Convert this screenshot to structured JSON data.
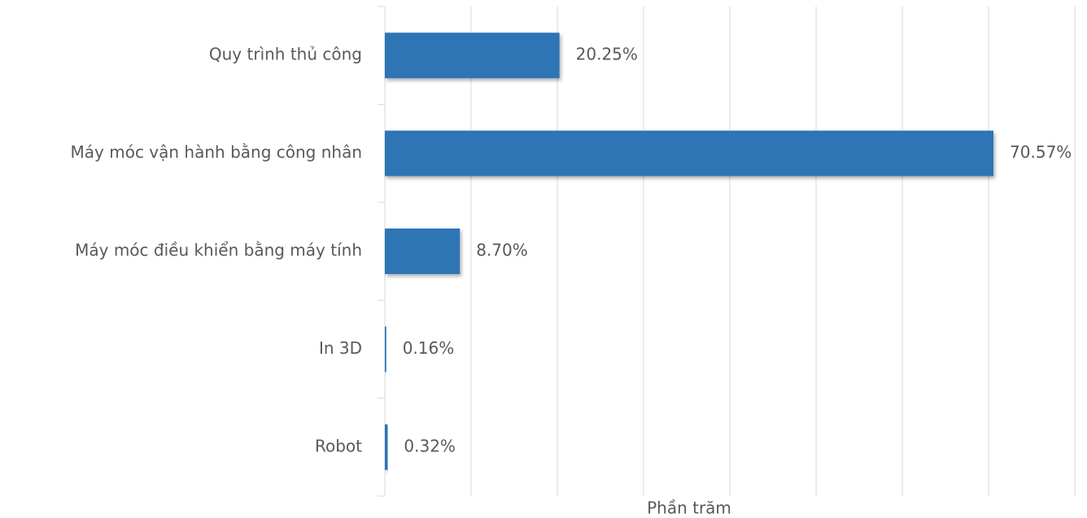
{
  "chart_data": {
    "type": "bar",
    "orientation": "horizontal",
    "categories": [
      "Quy trình thủ công",
      "Máy móc vận hành bằng công nhân",
      "Máy móc điều khiển bằng máy tính",
      "In 3D",
      "Robot"
    ],
    "values": [
      20.25,
      70.57,
      8.7,
      0.16,
      0.32
    ],
    "value_labels": [
      "20.25%",
      "70.57%",
      "8.70%",
      "0.16%",
      "0.32%"
    ],
    "color": "#2e75b6",
    "xlabel": "Phần trăm",
    "xlim": [
      0,
      80
    ],
    "xticks": [
      0,
      10,
      20,
      30,
      40,
      50,
      60,
      70,
      80
    ],
    "grid": true
  }
}
